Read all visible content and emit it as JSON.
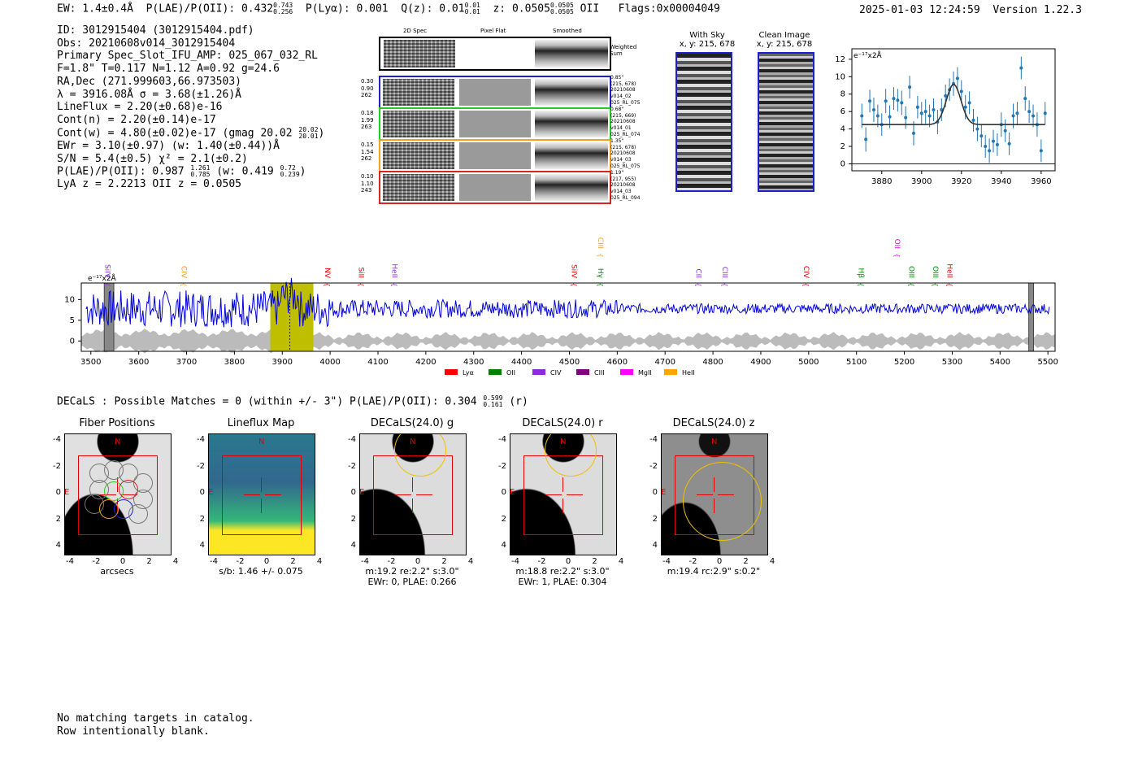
{
  "header": {
    "ew": "EW: 1.4±0.4Å",
    "plae_label": "P(LAE)/P(OII): 0.432",
    "plae_hi": "0.743",
    "plae_lo": "0.256",
    "plya": "P(Lyα): 0.001",
    "qz_label": "Q(z): 0.01",
    "qz_hi": "0.01",
    "qz_lo": "0.01",
    "z_label": "z: 0.0505",
    "z_hi": "0.0505",
    "z_lo": "0.0505",
    "z_line": "OII",
    "flags": "Flags:0x00004049",
    "datetime": "2025-01-03 12:24:59",
    "version": "Version 1.22.3"
  },
  "info": {
    "l1": "ID: 3012915404 (3012915404.pdf)",
    "l2": "Obs: 20210608v014_3012915404",
    "l3": "Primary Spec_Slot_IFU_AMP: 025_067_032_RL",
    "l4": "F=1.8\"  T=0.117  N=1.12  A=0.92  g=24.6",
    "l5": "RA,Dec (271.999603,66.973503)",
    "l6": "λ = 3916.08Å  σ = 3.68(±1.26)Å",
    "l7": "LineFlux = 2.20(±0.68)e-16",
    "l8": "Cont(n) = 2.20(±0.14)e-17",
    "l9": "Cont(w) = 4.80(±0.02)e-17 (gmag 20.02",
    "l9_hi": "20.02",
    "l9_lo": "20.01",
    "l9_end": ")",
    "l10": "EWr = 3.10(±0.97) (w: 1.40(±0.44))Å",
    "l11": "S/N = 5.4(±0.5)  χ² = 2.1(±0.2)",
    "l12": "P(LAE)/P(OII): 0.987",
    "l12_hi": "1.261",
    "l12_lo": "0.785",
    "l12_mid": "(w: 0.419",
    "l12_hi2": "0.72",
    "l12_lo2": "0.239",
    "l12_end": ")",
    "l13": "LyA z = 2.2213  OII z = 0.0505"
  },
  "cutouts": {
    "col1": "2D Spec",
    "col2": "Pixel Flat",
    "col3": "Smoothed",
    "weighted": "Weighted Sum",
    "rows": [
      {
        "l1": "0.30",
        "l2": "0.90",
        "l3": "262",
        "r1": "0.85\"",
        "r2": "(215, 678)",
        "r3": "20210608",
        "r4": "v014_02",
        "r5": "025_RL_075",
        "color": "#1f1fcc"
      },
      {
        "l1": "0.18",
        "l2": "1.99",
        "l3": "263",
        "r1": "0.68\"",
        "r2": "(215, 669)",
        "r3": "20210608",
        "r4": "v014_01",
        "r5": "025_RL_074",
        "color": "#22cc22"
      },
      {
        "l1": "0.15",
        "l2": "1.54",
        "l3": "262",
        "r1": "1.35\"",
        "r2": "(215, 678)",
        "r3": "20210608",
        "r4": "v014_03",
        "r5": "025_RL_075",
        "color": "#f0a020"
      },
      {
        "l1": "0.10",
        "l2": "1.10",
        "l3": "243",
        "r1": "1.19\"",
        "r2": "(217, 955)",
        "r3": "20210608",
        "r4": "v014_03",
        "r5": "025_RL_094",
        "color": "#dd2222"
      }
    ]
  },
  "sky": {
    "with_sky_title": "With Sky",
    "with_sky_xy": "x, y: 215, 678",
    "clean_title": "Clean Image",
    "clean_xy": "x, y: 215, 678"
  },
  "chart_data": [
    {
      "type": "scatter",
      "unit_label": "e⁻¹⁷x2Å",
      "xlim": [
        3865,
        3967
      ],
      "ylim": [
        -0.8,
        13.2
      ],
      "xticks": [
        3880,
        3900,
        3920,
        3940,
        3960
      ],
      "yticks": [
        0,
        2,
        4,
        6,
        8,
        10,
        12
      ],
      "x": [
        3870,
        3872,
        3874,
        3876,
        3878,
        3880,
        3882,
        3884,
        3886,
        3888,
        3890,
        3892,
        3894,
        3896,
        3898,
        3900,
        3902,
        3904,
        3906,
        3908,
        3910,
        3912,
        3914,
        3916,
        3918,
        3920,
        3922,
        3924,
        3926,
        3928,
        3930,
        3932,
        3934,
        3936,
        3938,
        3940,
        3942,
        3944,
        3946,
        3948,
        3950,
        3952,
        3954,
        3956,
        3958,
        3960,
        3962
      ],
      "y": [
        5.5,
        2.8,
        7.2,
        6.2,
        5.5,
        4.5,
        7.2,
        5.4,
        7.5,
        7.3,
        7.0,
        5.3,
        8.8,
        3.5,
        6.5,
        5.8,
        6.0,
        5.5,
        6.2,
        4.8,
        6.2,
        7.8,
        8.5,
        9.2,
        9.8,
        8.3,
        6.5,
        7.0,
        5.0,
        4.0,
        3.2,
        2.0,
        1.5,
        2.6,
        2.2,
        4.5,
        3.8,
        2.3,
        5.5,
        5.8,
        11.0,
        7.5,
        6.0,
        5.5,
        4.5,
        1.5,
        5.8
      ],
      "yerr": [
        1.4,
        1.4,
        1.3,
        1.4,
        1.3,
        1.3,
        1.4,
        1.3,
        1.3,
        1.3,
        1.4,
        1.3,
        1.3,
        1.4,
        1.3,
        1.3,
        1.4,
        1.3,
        1.3,
        1.4,
        1.3,
        1.3,
        1.3,
        1.4,
        1.3,
        1.3,
        1.4,
        1.3,
        1.3,
        1.4,
        1.3,
        1.3,
        1.4,
        1.3,
        1.3,
        1.4,
        1.3,
        1.3,
        1.4,
        1.3,
        1.3,
        1.4,
        1.3,
        1.3,
        1.4,
        1.3,
        1.3
      ],
      "model": {
        "continuum": 4.5,
        "amplitude": 4.6,
        "center": 3916.08,
        "sigma": 3.68,
        "x_range": [
          3870,
          3962
        ]
      }
    },
    {
      "type": "line",
      "unit_label": "e⁻¹⁷x2Å",
      "xlim": [
        3480,
        5515
      ],
      "ylim": [
        -2.5,
        14
      ],
      "xticks": [
        3500,
        3600,
        3700,
        3800,
        3900,
        4000,
        4100,
        4200,
        4300,
        4400,
        4500,
        4600,
        4700,
        4800,
        4900,
        5000,
        5100,
        5200,
        5300,
        5400,
        5500
      ],
      "yticks": [
        0,
        5,
        10
      ],
      "color": "#0000dd",
      "error_band_color": "#bbbbbb",
      "highlight": {
        "x0": 3875,
        "x1": 3965,
        "color": "#bfbf00",
        "line_x": 3916
      },
      "masked_regions": [
        [
          3528,
          3548
        ],
        [
          5460,
          5470
        ]
      ],
      "line_markers": [
        {
          "label": "SiIV",
          "x": 3530,
          "color": "#8a2be2",
          "tier": 0
        },
        {
          "label": "CIV",
          "x": 3690,
          "color": "#f0a020",
          "tier": 0
        },
        {
          "label": "NV",
          "x": 3990,
          "color": "#dd0000",
          "tier": 0
        },
        {
          "label": "SiII",
          "x": 4060,
          "color": "#dd0000",
          "tier": 0
        },
        {
          "label": "HeII",
          "x": 4130,
          "color": "#8a2be2",
          "tier": 0
        },
        {
          "label": "SiIV",
          "x": 4505,
          "color": "#dd0000",
          "tier": 0
        },
        {
          "label": "CIII",
          "x": 4560,
          "color": "#f0a020",
          "tier": 1
        },
        {
          "label": "Hγ",
          "x": 4560,
          "color": "#008800",
          "tier": 0
        },
        {
          "label": "CII",
          "x": 4765,
          "color": "#8a2be2",
          "tier": 0
        },
        {
          "label": "CIII",
          "x": 4820,
          "color": "#8a2be2",
          "tier": 0
        },
        {
          "label": "CIV",
          "x": 4990,
          "color": "#dd0000",
          "tier": 0
        },
        {
          "label": "Hβ",
          "x": 5105,
          "color": "#008800",
          "tier": 0
        },
        {
          "label": "OII",
          "x": 5180,
          "color": "#ee00ee",
          "tier": 1
        },
        {
          "label": "OIII",
          "x": 5210,
          "color": "#008800",
          "tier": 0
        },
        {
          "label": "OIII",
          "x": 5260,
          "color": "#008800",
          "tier": 0
        },
        {
          "label": "HeII",
          "x": 5290,
          "color": "#dd0000",
          "tier": 0
        }
      ],
      "legend": [
        {
          "name": "Lyα",
          "color": "#ff0000"
        },
        {
          "name": "OII",
          "color": "#008000"
        },
        {
          "name": "CIV",
          "color": "#8a2be2"
        },
        {
          "name": "CIII",
          "color": "#800080"
        },
        {
          "name": "MgII",
          "color": "#ff00ff"
        },
        {
          "name": "HeII",
          "color": "#ffa500"
        }
      ]
    }
  ],
  "decals_header": {
    "text": "DECaLS : Possible Matches = 0 (within +/- 3\")  P(LAE)/P(OII): 0.304",
    "hi": "0.599",
    "lo": "0.161",
    "end": "(r)"
  },
  "panels": [
    {
      "title": "Fiber Positions",
      "sub1": "arcsecs",
      "sub2": ""
    },
    {
      "title": "Lineflux Map",
      "sub1": "s/b: 1.46 +/- 0.075",
      "sub2": ""
    },
    {
      "title": "DECaLS(24.0) g",
      "sub1": "m:19.2  re:2.2\"  s:3.0\"",
      "sub2": "EWr: 0, PLAE: 0.266"
    },
    {
      "title": "DECaLS(24.0) r",
      "sub1": "m:18.8  re:2.2\"  s:3.0\"",
      "sub2": "EWr: 1, PLAE: 0.304"
    },
    {
      "title": "DECaLS(24.0) z",
      "sub1": "m:19.4 rc:2.9\"  s:0.2\"",
      "sub2": ""
    }
  ],
  "panel_axis": {
    "ticks": [
      "-4",
      "-2",
      "0",
      "2",
      "4"
    ],
    "n": "N",
    "e": "E"
  },
  "footer": {
    "l1": "No matching targets in catalog.",
    "l2": "Row intentionally blank."
  }
}
